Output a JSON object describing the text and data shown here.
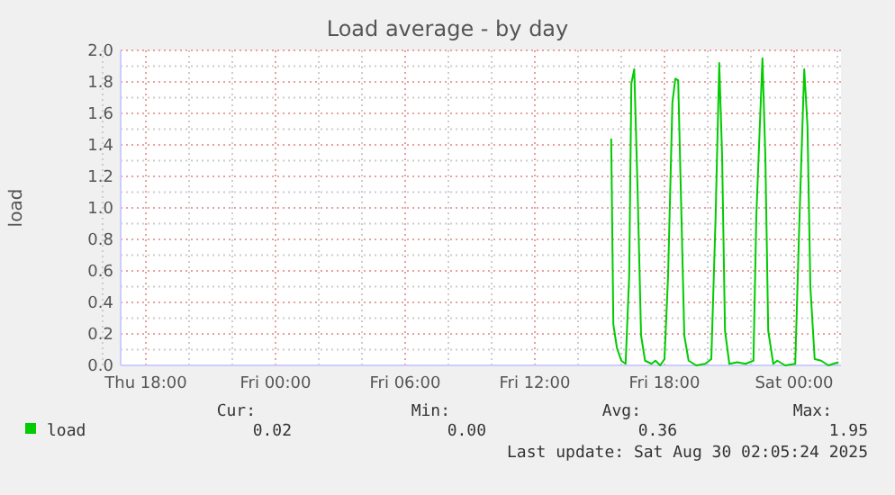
{
  "chart_data": {
    "type": "line",
    "title": "Load average - by day",
    "ylabel": "load",
    "x": [
      "2025-08-29T15:32",
      "2025-08-29T15:38",
      "2025-08-29T15:48",
      "2025-08-29T16:00",
      "2025-08-29T16:12",
      "2025-08-29T16:22",
      "2025-08-29T16:28",
      "2025-08-29T16:36",
      "2025-08-29T16:45",
      "2025-08-29T16:55",
      "2025-08-29T17:06",
      "2025-08-29T17:24",
      "2025-08-29T17:35",
      "2025-08-29T17:48",
      "2025-08-29T18:00",
      "2025-08-29T18:10",
      "2025-08-29T18:22",
      "2025-08-29T18:30",
      "2025-08-29T18:38",
      "2025-08-29T18:47",
      "2025-08-29T18:55",
      "2025-08-29T19:07",
      "2025-08-29T19:28",
      "2025-08-29T19:53",
      "2025-08-29T20:10",
      "2025-08-29T20:22",
      "2025-08-29T20:32",
      "2025-08-29T20:40",
      "2025-08-29T20:48",
      "2025-08-29T21:00",
      "2025-08-29T21:22",
      "2025-08-29T21:45",
      "2025-08-29T22:07",
      "2025-08-29T22:15",
      "2025-08-29T22:32",
      "2025-08-29T22:40",
      "2025-08-29T22:48",
      "2025-08-29T23:02",
      "2025-08-29T23:13",
      "2025-08-29T23:35",
      "2025-08-30T00:03",
      "2025-08-30T00:15",
      "2025-08-30T00:28",
      "2025-08-30T00:37",
      "2025-08-30T00:45",
      "2025-08-30T00:57",
      "2025-08-30T01:15",
      "2025-08-30T01:35",
      "2025-08-30T02:03"
    ],
    "series": [
      {
        "name": "load",
        "color": "#00cc00",
        "values": [
          1.44,
          0.26,
          0.11,
          0.03,
          0.01,
          0.57,
          1.79,
          1.88,
          1.14,
          0.19,
          0.03,
          0.01,
          0.03,
          0.0,
          0.04,
          0.57,
          1.67,
          1.82,
          1.81,
          0.95,
          0.19,
          0.03,
          0.0,
          0.01,
          0.04,
          0.95,
          1.92,
          1.33,
          0.22,
          0.01,
          0.02,
          0.01,
          0.03,
          0.95,
          1.95,
          1.33,
          0.22,
          0.01,
          0.03,
          0.0,
          0.01,
          0.95,
          1.88,
          1.52,
          0.5,
          0.04,
          0.03,
          0.0,
          0.02
        ]
      }
    ],
    "xlim": [
      "2025-08-28T16:50",
      "2025-08-30T02:10"
    ],
    "xticks": [
      {
        "value": "2025-08-28T18:00",
        "label": "Thu 18:00"
      },
      {
        "value": "2025-08-29T00:00",
        "label": "Fri 00:00"
      },
      {
        "value": "2025-08-29T06:00",
        "label": "Fri 06:00"
      },
      {
        "value": "2025-08-29T12:00",
        "label": "Fri 12:00"
      },
      {
        "value": "2025-08-29T18:00",
        "label": "Fri 18:00"
      },
      {
        "value": "2025-08-30T00:00",
        "label": "Sat 00:00"
      }
    ],
    "ylim": [
      0,
      2
    ],
    "yticks": [
      {
        "value": 0,
        "label": "0.0"
      },
      {
        "value": 0.2,
        "label": "0.2"
      },
      {
        "value": 0.4,
        "label": "0.4"
      },
      {
        "value": 0.6,
        "label": "0.6"
      },
      {
        "value": 0.8,
        "label": "0.8"
      },
      {
        "value": 1,
        "label": "1.0"
      },
      {
        "value": 1.2,
        "label": "1.2"
      },
      {
        "value": 1.4,
        "label": "1.4"
      },
      {
        "value": 1.6,
        "label": "1.6"
      },
      {
        "value": 1.8,
        "label": "1.8"
      },
      {
        "value": 2,
        "label": "2.0"
      }
    ],
    "grid": true,
    "legend": "bottom",
    "annotations": [
      "Cur:",
      "Min:",
      "Avg:",
      "Max:",
      "0.02",
      "0.00",
      "0.36",
      "1.95",
      "Last update: Sat Aug 30 02:05:24 2025"
    ]
  }
}
